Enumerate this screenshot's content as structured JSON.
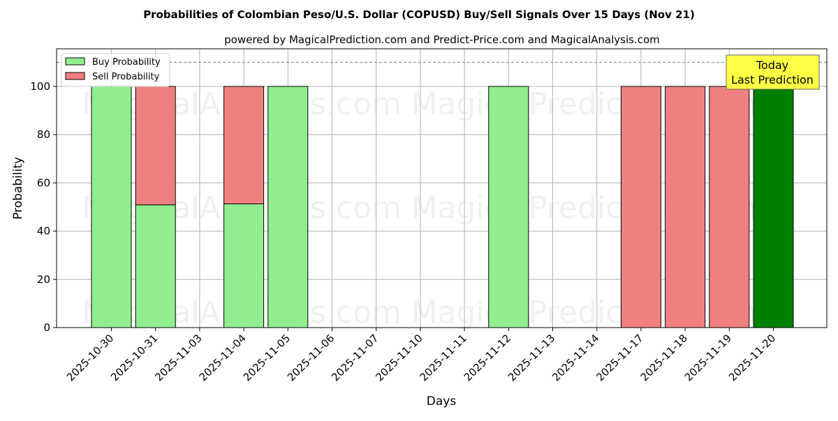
{
  "chart_data": {
    "type": "bar",
    "stacked": true,
    "title": "Probabilities of Colombian Peso/U.S. Dollar (COPUSD) Buy/Sell Signals Over 15 Days (Nov 21)",
    "subtitle": "powered by MagicalPrediction.com and Predict-Price.com and MagicalAnalysis.com",
    "xlabel": "Days",
    "ylabel": "Probability",
    "ylim": [
      0,
      115.6
    ],
    "yticks": [
      0,
      20,
      40,
      60,
      80,
      100
    ],
    "grid": true,
    "legend_position": "upper left",
    "categories": [
      "2025-10-30",
      "2025-10-31",
      "2025-11-03",
      "2025-11-04",
      "2025-11-05",
      "2025-11-06",
      "2025-11-07",
      "2025-11-10",
      "2025-11-11",
      "2025-11-12",
      "2025-11-13",
      "2025-11-14",
      "2025-11-17",
      "2025-11-18",
      "2025-11-19",
      "2025-11-20"
    ],
    "series": [
      {
        "name": "Buy Probability",
        "color": "#90ee90",
        "values": [
          100,
          50.9,
          0,
          51.3,
          100,
          0,
          0,
          0,
          0,
          100,
          0,
          0,
          0,
          0,
          0,
          100
        ]
      },
      {
        "name": "Sell Probability",
        "color": "#f08080",
        "values": [
          0,
          49.1,
          0,
          48.7,
          0,
          0,
          0,
          0,
          0,
          0,
          0,
          0,
          100,
          100,
          100,
          0
        ]
      }
    ],
    "highlight": {
      "index": 15,
      "color": "#008000"
    },
    "reference_line": {
      "y": 110,
      "style": "dashed",
      "color": "#808080"
    },
    "annotation": {
      "lines": [
        "Today",
        "Last Prediction"
      ],
      "background": "#ffff44",
      "anchor_index": 15
    },
    "watermarks": [
      "MagicalAnalysis.com",
      "MagicalPrediction.com"
    ]
  }
}
